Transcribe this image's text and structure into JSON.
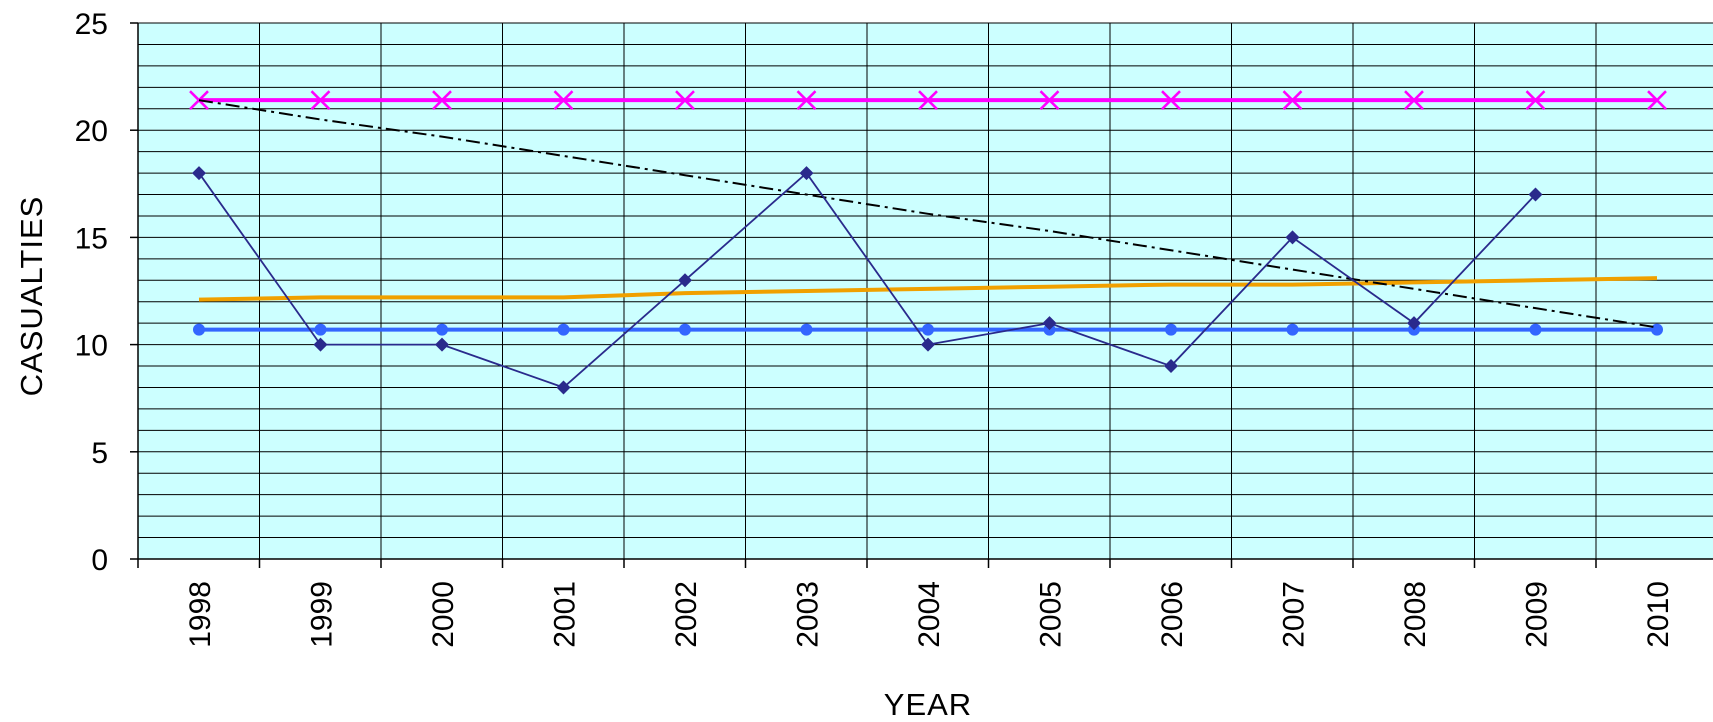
{
  "chart_data": {
    "type": "line",
    "title": "",
    "xlabel": "YEAR",
    "ylabel": "CASUALTIES",
    "categories": [
      "1998",
      "1999",
      "2000",
      "2001",
      "2002",
      "2003",
      "2004",
      "2005",
      "2006",
      "2007",
      "2008",
      "2009",
      "2010"
    ],
    "ylim": [
      0,
      25
    ],
    "yticks": [
      0,
      5,
      10,
      15,
      20,
      25
    ],
    "grid": "on",
    "legend": "none",
    "plot_background": "#ccffff",
    "series": [
      {
        "key": "casualties",
        "color": "#2a2a8c",
        "marker": "diamond",
        "style": "solid",
        "values": [
          18,
          10,
          10,
          8,
          13,
          18,
          10,
          11,
          9,
          15,
          11,
          17,
          null
        ]
      },
      {
        "key": "mean",
        "color": "#3366ff",
        "marker": "circle",
        "style": "solid",
        "values": [
          10.7,
          10.7,
          10.7,
          10.7,
          10.7,
          10.7,
          10.7,
          10.7,
          10.7,
          10.7,
          10.7,
          10.7,
          10.7
        ]
      },
      {
        "key": "upper",
        "color": "#ff00ff",
        "marker": "x",
        "style": "solid",
        "values": [
          21.4,
          21.4,
          21.4,
          21.4,
          21.4,
          21.4,
          21.4,
          21.4,
          21.4,
          21.4,
          21.4,
          21.4,
          21.4
        ]
      },
      {
        "key": "trend",
        "color": "#f0a000",
        "marker": "none",
        "style": "solid",
        "values": [
          12.1,
          12.2,
          12.2,
          12.2,
          12.4,
          12.5,
          12.6,
          12.7,
          12.8,
          12.8,
          12.9,
          13.0,
          13.1
        ]
      },
      {
        "key": "decline",
        "color": "#000000",
        "marker": "none",
        "style": "dashdot",
        "values": [
          21.4,
          20.5,
          19.7,
          18.8,
          17.9,
          17.0,
          16.1,
          15.3,
          14.4,
          13.5,
          12.6,
          11.7,
          10.8
        ]
      }
    ]
  }
}
